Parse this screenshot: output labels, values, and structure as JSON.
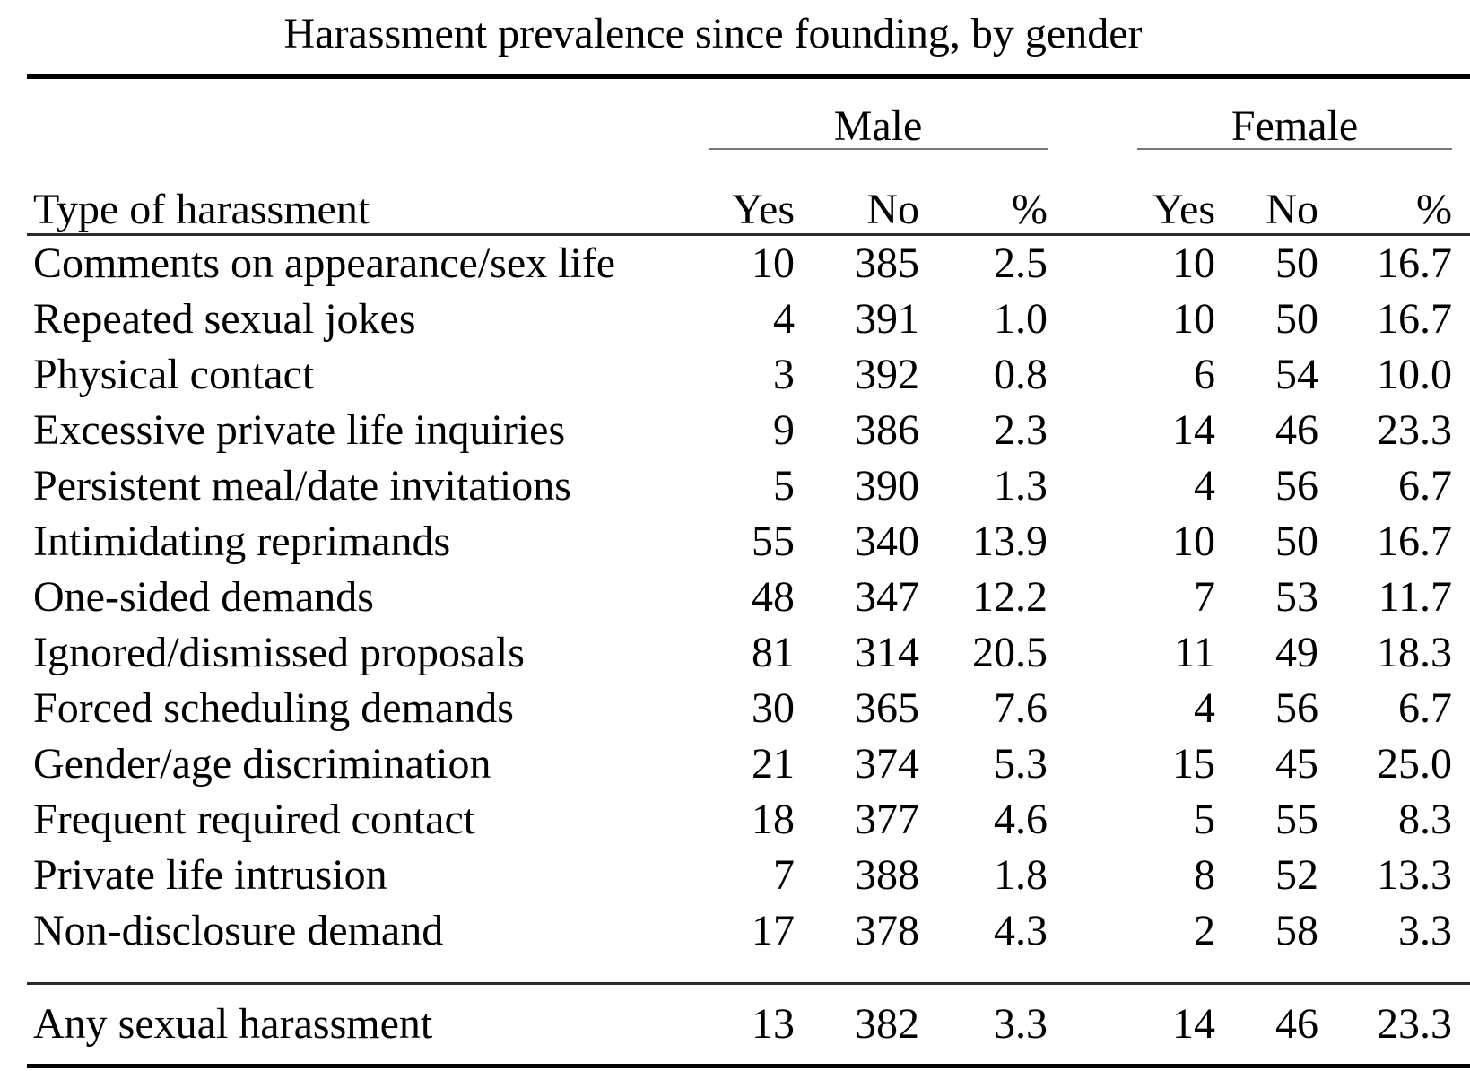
{
  "title": "Harassment prevalence since founding, by gender",
  "table": {
    "row_header": "Type of harassment",
    "groups": [
      {
        "label": "Male"
      },
      {
        "label": "Female"
      }
    ],
    "sub_headers": [
      "Yes",
      "No",
      "%"
    ],
    "rows": [
      {
        "label": "Comments on appearance/sex life",
        "values": [
          "10",
          "385",
          "2.5",
          "10",
          "50",
          "16.7"
        ]
      },
      {
        "label": "Repeated sexual jokes",
        "values": [
          "4",
          "391",
          "1.0",
          "10",
          "50",
          "16.7"
        ]
      },
      {
        "label": "Physical contact",
        "values": [
          "3",
          "392",
          "0.8",
          "6",
          "54",
          "10.0"
        ]
      },
      {
        "label": "Excessive private life inquiries",
        "values": [
          "9",
          "386",
          "2.3",
          "14",
          "46",
          "23.3"
        ]
      },
      {
        "label": "Persistent meal/date invitations",
        "values": [
          "5",
          "390",
          "1.3",
          "4",
          "56",
          "6.7"
        ]
      },
      {
        "label": "Intimidating reprimands",
        "values": [
          "55",
          "340",
          "13.9",
          "10",
          "50",
          "16.7"
        ]
      },
      {
        "label": "One-sided demands",
        "values": [
          "48",
          "347",
          "12.2",
          "7",
          "53",
          "11.7"
        ]
      },
      {
        "label": "Ignored/dismissed proposals",
        "values": [
          "81",
          "314",
          "20.5",
          "11",
          "49",
          "18.3"
        ]
      },
      {
        "label": "Forced scheduling demands",
        "values": [
          "30",
          "365",
          "7.6",
          "4",
          "56",
          "6.7"
        ]
      },
      {
        "label": "Gender/age discrimination",
        "values": [
          "21",
          "374",
          "5.3",
          "15",
          "45",
          "25.0"
        ]
      },
      {
        "label": "Frequent required contact",
        "values": [
          "18",
          "377",
          "4.6",
          "5",
          "55",
          "8.3"
        ]
      },
      {
        "label": "Private life intrusion",
        "values": [
          "7",
          "388",
          "1.8",
          "8",
          "52",
          "13.3"
        ]
      },
      {
        "label": "Non-disclosure demand",
        "values": [
          "17",
          "378",
          "4.3",
          "2",
          "58",
          "3.3"
        ]
      }
    ],
    "summary_row": {
      "label": "Any sexual harassment",
      "values": [
        "13",
        "382",
        "3.3",
        "14",
        "46",
        "23.3"
      ]
    }
  }
}
